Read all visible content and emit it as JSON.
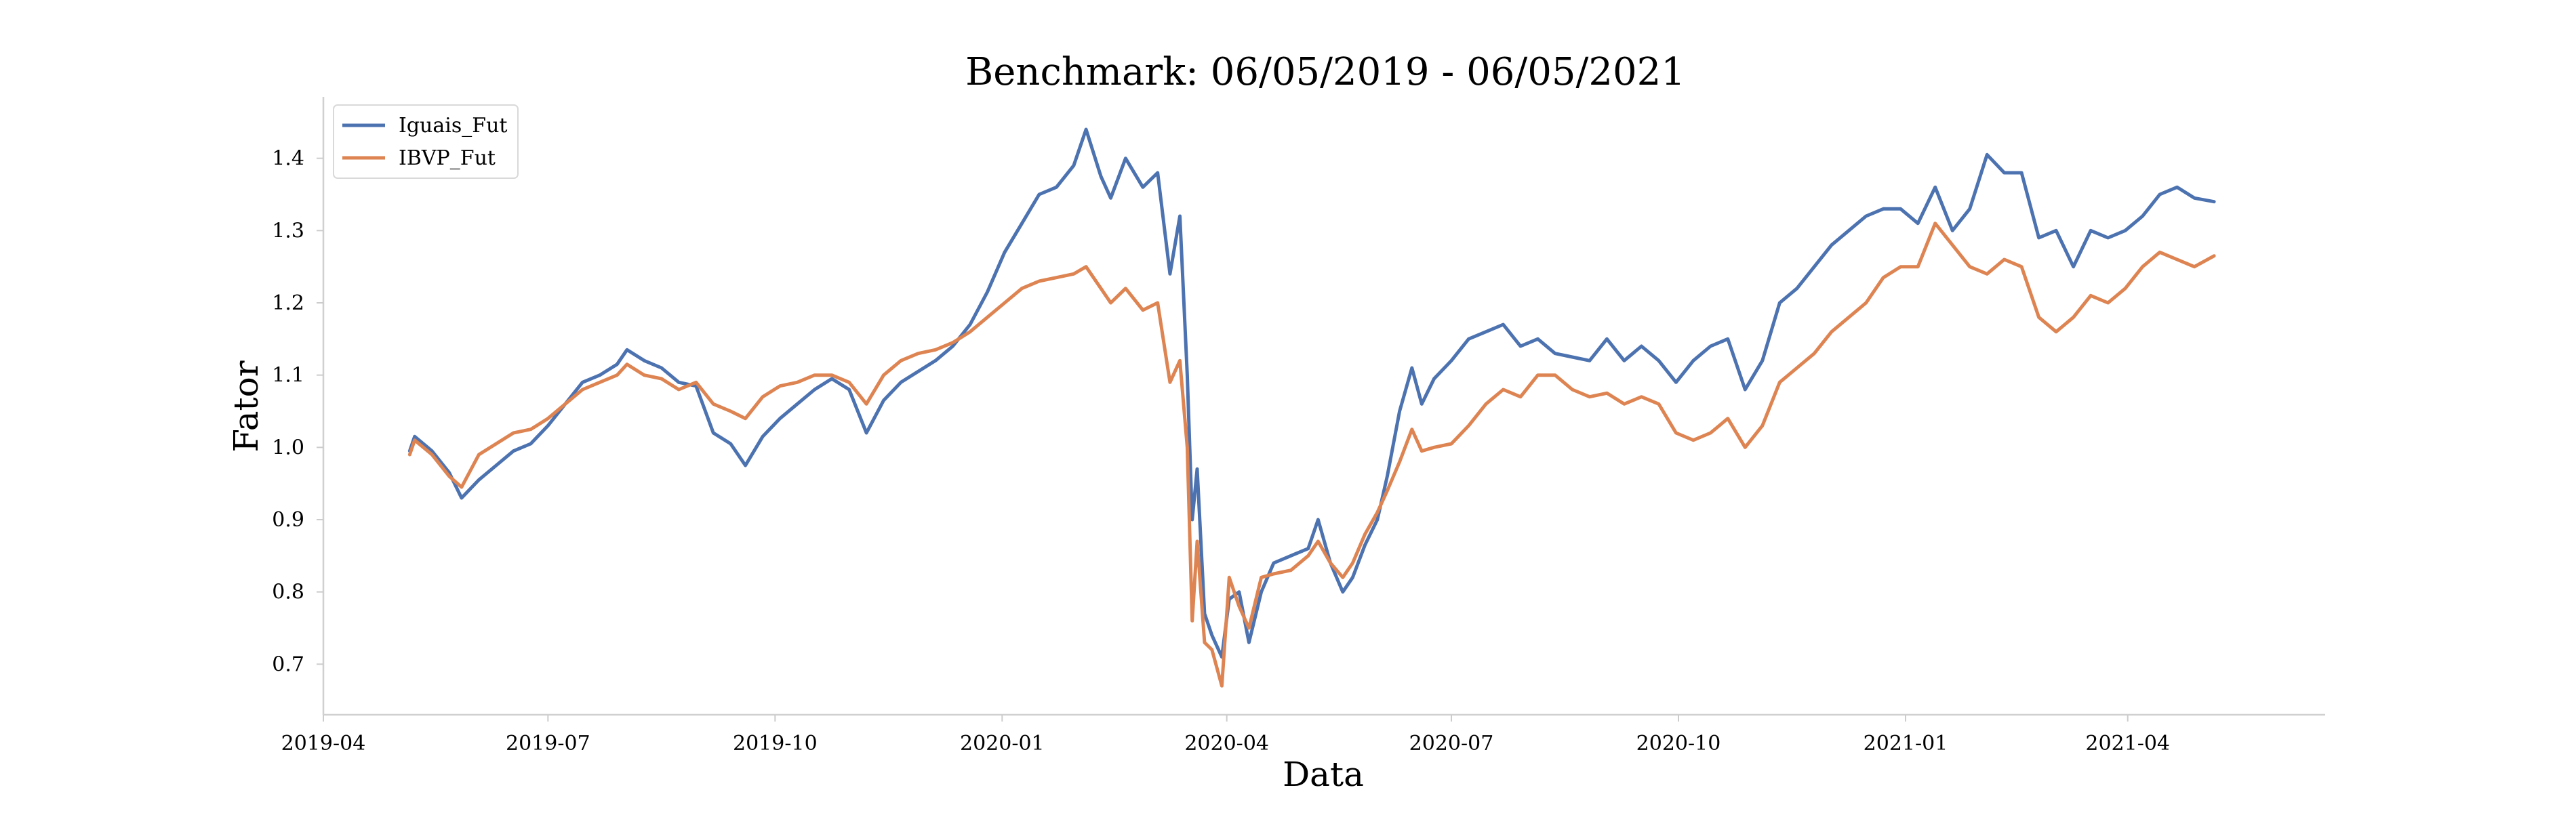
{
  "chart_data": {
    "type": "line",
    "title": "Benchmark: 06/05/2019 - 06/05/2021",
    "xlabel": "Data",
    "ylabel": "Fator",
    "xlim": [
      "2019-04-01",
      "2021-06-20"
    ],
    "ylim": [
      0.63,
      1.485
    ],
    "x_ticks": [
      "2019-04",
      "2019-07",
      "2019-10",
      "2020-01",
      "2020-04",
      "2020-07",
      "2020-10",
      "2021-01",
      "2021-04"
    ],
    "y_ticks": [
      "0.7",
      "0.8",
      "0.9",
      "1.0",
      "1.1",
      "1.2",
      "1.3",
      "1.4"
    ],
    "grid": false,
    "legend_position": "top-left",
    "series": [
      {
        "name": "Iguais_Fut",
        "color": "#4c72b0",
        "points": [
          [
            "2019-05-06",
            0.995
          ],
          [
            "2019-05-08",
            1.015
          ],
          [
            "2019-05-15",
            0.995
          ],
          [
            "2019-05-22",
            0.965
          ],
          [
            "2019-05-27",
            0.93
          ],
          [
            "2019-06-03",
            0.955
          ],
          [
            "2019-06-10",
            0.975
          ],
          [
            "2019-06-17",
            0.995
          ],
          [
            "2019-06-24",
            1.005
          ],
          [
            "2019-07-01",
            1.03
          ],
          [
            "2019-07-08",
            1.06
          ],
          [
            "2019-07-15",
            1.09
          ],
          [
            "2019-07-22",
            1.1
          ],
          [
            "2019-07-29",
            1.115
          ],
          [
            "2019-08-02",
            1.135
          ],
          [
            "2019-08-09",
            1.12
          ],
          [
            "2019-08-16",
            1.11
          ],
          [
            "2019-08-23",
            1.09
          ],
          [
            "2019-08-30",
            1.085
          ],
          [
            "2019-09-06",
            1.02
          ],
          [
            "2019-09-13",
            1.005
          ],
          [
            "2019-09-19",
            0.975
          ],
          [
            "2019-09-26",
            1.015
          ],
          [
            "2019-10-03",
            1.04
          ],
          [
            "2019-10-10",
            1.06
          ],
          [
            "2019-10-17",
            1.08
          ],
          [
            "2019-10-24",
            1.095
          ],
          [
            "2019-10-31",
            1.08
          ],
          [
            "2019-11-07",
            1.02
          ],
          [
            "2019-11-14",
            1.065
          ],
          [
            "2019-11-21",
            1.09
          ],
          [
            "2019-11-28",
            1.105
          ],
          [
            "2019-12-05",
            1.12
          ],
          [
            "2019-12-12",
            1.14
          ],
          [
            "2019-12-19",
            1.17
          ],
          [
            "2019-12-26",
            1.215
          ],
          [
            "2020-01-02",
            1.27
          ],
          [
            "2020-01-09",
            1.31
          ],
          [
            "2020-01-16",
            1.35
          ],
          [
            "2020-01-23",
            1.36
          ],
          [
            "2020-01-30",
            1.39
          ],
          [
            "2020-02-04",
            1.44
          ],
          [
            "2020-02-10",
            1.375
          ],
          [
            "2020-02-14",
            1.345
          ],
          [
            "2020-02-20",
            1.4
          ],
          [
            "2020-02-27",
            1.36
          ],
          [
            "2020-03-04",
            1.38
          ],
          [
            "2020-03-09",
            1.24
          ],
          [
            "2020-03-13",
            1.32
          ],
          [
            "2020-03-16",
            1.1
          ],
          [
            "2020-03-18",
            0.9
          ],
          [
            "2020-03-20",
            0.97
          ],
          [
            "2020-03-23",
            0.77
          ],
          [
            "2020-03-26",
            0.74
          ],
          [
            "2020-03-30",
            0.71
          ],
          [
            "2020-04-02",
            0.79
          ],
          [
            "2020-04-06",
            0.8
          ],
          [
            "2020-04-10",
            0.73
          ],
          [
            "2020-04-15",
            0.8
          ],
          [
            "2020-04-20",
            0.84
          ],
          [
            "2020-04-27",
            0.85
          ],
          [
            "2020-05-04",
            0.86
          ],
          [
            "2020-05-08",
            0.9
          ],
          [
            "2020-05-13",
            0.84
          ],
          [
            "2020-05-18",
            0.8
          ],
          [
            "2020-05-22",
            0.82
          ],
          [
            "2020-05-27",
            0.865
          ],
          [
            "2020-06-01",
            0.9
          ],
          [
            "2020-06-05",
            0.96
          ],
          [
            "2020-06-10",
            1.05
          ],
          [
            "2020-06-15",
            1.11
          ],
          [
            "2020-06-19",
            1.06
          ],
          [
            "2020-06-24",
            1.095
          ],
          [
            "2020-07-01",
            1.12
          ],
          [
            "2020-07-08",
            1.15
          ],
          [
            "2020-07-15",
            1.16
          ],
          [
            "2020-07-22",
            1.17
          ],
          [
            "2020-07-29",
            1.14
          ],
          [
            "2020-08-05",
            1.15
          ],
          [
            "2020-08-12",
            1.13
          ],
          [
            "2020-08-19",
            1.125
          ],
          [
            "2020-08-26",
            1.12
          ],
          [
            "2020-09-02",
            1.15
          ],
          [
            "2020-09-09",
            1.12
          ],
          [
            "2020-09-16",
            1.14
          ],
          [
            "2020-09-23",
            1.12
          ],
          [
            "2020-09-30",
            1.09
          ],
          [
            "2020-10-07",
            1.12
          ],
          [
            "2020-10-14",
            1.14
          ],
          [
            "2020-10-21",
            1.15
          ],
          [
            "2020-10-28",
            1.08
          ],
          [
            "2020-11-04",
            1.12
          ],
          [
            "2020-11-11",
            1.2
          ],
          [
            "2020-11-18",
            1.22
          ],
          [
            "2020-11-25",
            1.25
          ],
          [
            "2020-12-02",
            1.28
          ],
          [
            "2020-12-09",
            1.3
          ],
          [
            "2020-12-16",
            1.32
          ],
          [
            "2020-12-23",
            1.33
          ],
          [
            "2020-12-30",
            1.33
          ],
          [
            "2021-01-06",
            1.31
          ],
          [
            "2021-01-13",
            1.36
          ],
          [
            "2021-01-20",
            1.3
          ],
          [
            "2021-01-27",
            1.33
          ],
          [
            "2021-02-03",
            1.405
          ],
          [
            "2021-02-10",
            1.38
          ],
          [
            "2021-02-17",
            1.38
          ],
          [
            "2021-02-24",
            1.29
          ],
          [
            "2021-03-03",
            1.3
          ],
          [
            "2021-03-10",
            1.25
          ],
          [
            "2021-03-17",
            1.3
          ],
          [
            "2021-03-24",
            1.29
          ],
          [
            "2021-03-31",
            1.3
          ],
          [
            "2021-04-07",
            1.32
          ],
          [
            "2021-04-14",
            1.35
          ],
          [
            "2021-04-21",
            1.36
          ],
          [
            "2021-04-28",
            1.345
          ],
          [
            "2021-05-06",
            1.34
          ]
        ]
      },
      {
        "name": "IBVP_Fut",
        "color": "#dd8452",
        "points": [
          [
            "2019-05-06",
            0.99
          ],
          [
            "2019-05-08",
            1.01
          ],
          [
            "2019-05-15",
            0.99
          ],
          [
            "2019-05-22",
            0.96
          ],
          [
            "2019-05-27",
            0.945
          ],
          [
            "2019-06-03",
            0.99
          ],
          [
            "2019-06-10",
            1.005
          ],
          [
            "2019-06-17",
            1.02
          ],
          [
            "2019-06-24",
            1.025
          ],
          [
            "2019-07-01",
            1.04
          ],
          [
            "2019-07-08",
            1.06
          ],
          [
            "2019-07-15",
            1.08
          ],
          [
            "2019-07-22",
            1.09
          ],
          [
            "2019-07-29",
            1.1
          ],
          [
            "2019-08-02",
            1.115
          ],
          [
            "2019-08-09",
            1.1
          ],
          [
            "2019-08-16",
            1.095
          ],
          [
            "2019-08-23",
            1.08
          ],
          [
            "2019-08-30",
            1.09
          ],
          [
            "2019-09-06",
            1.06
          ],
          [
            "2019-09-13",
            1.05
          ],
          [
            "2019-09-19",
            1.04
          ],
          [
            "2019-09-26",
            1.07
          ],
          [
            "2019-10-03",
            1.085
          ],
          [
            "2019-10-10",
            1.09
          ],
          [
            "2019-10-17",
            1.1
          ],
          [
            "2019-10-24",
            1.1
          ],
          [
            "2019-10-31",
            1.09
          ],
          [
            "2019-11-07",
            1.06
          ],
          [
            "2019-11-14",
            1.1
          ],
          [
            "2019-11-21",
            1.12
          ],
          [
            "2019-11-28",
            1.13
          ],
          [
            "2019-12-05",
            1.135
          ],
          [
            "2019-12-12",
            1.145
          ],
          [
            "2019-12-19",
            1.16
          ],
          [
            "2019-12-26",
            1.18
          ],
          [
            "2020-01-02",
            1.2
          ],
          [
            "2020-01-09",
            1.22
          ],
          [
            "2020-01-16",
            1.23
          ],
          [
            "2020-01-23",
            1.235
          ],
          [
            "2020-01-30",
            1.24
          ],
          [
            "2020-02-04",
            1.25
          ],
          [
            "2020-02-10",
            1.22
          ],
          [
            "2020-02-14",
            1.2
          ],
          [
            "2020-02-20",
            1.22
          ],
          [
            "2020-02-27",
            1.19
          ],
          [
            "2020-03-04",
            1.2
          ],
          [
            "2020-03-09",
            1.09
          ],
          [
            "2020-03-13",
            1.12
          ],
          [
            "2020-03-16",
            1.0
          ],
          [
            "2020-03-18",
            0.76
          ],
          [
            "2020-03-20",
            0.87
          ],
          [
            "2020-03-23",
            0.73
          ],
          [
            "2020-03-26",
            0.72
          ],
          [
            "2020-03-30",
            0.67
          ],
          [
            "2020-04-02",
            0.82
          ],
          [
            "2020-04-06",
            0.78
          ],
          [
            "2020-04-10",
            0.75
          ],
          [
            "2020-04-15",
            0.82
          ],
          [
            "2020-04-20",
            0.825
          ],
          [
            "2020-04-27",
            0.83
          ],
          [
            "2020-05-04",
            0.85
          ],
          [
            "2020-05-08",
            0.87
          ],
          [
            "2020-05-13",
            0.84
          ],
          [
            "2020-05-18",
            0.82
          ],
          [
            "2020-05-22",
            0.84
          ],
          [
            "2020-05-27",
            0.88
          ],
          [
            "2020-06-01",
            0.91
          ],
          [
            "2020-06-05",
            0.94
          ],
          [
            "2020-06-10",
            0.98
          ],
          [
            "2020-06-15",
            1.025
          ],
          [
            "2020-06-19",
            0.995
          ],
          [
            "2020-06-24",
            1.0
          ],
          [
            "2020-07-01",
            1.005
          ],
          [
            "2020-07-08",
            1.03
          ],
          [
            "2020-07-15",
            1.06
          ],
          [
            "2020-07-22",
            1.08
          ],
          [
            "2020-07-29",
            1.07
          ],
          [
            "2020-08-05",
            1.1
          ],
          [
            "2020-08-12",
            1.1
          ],
          [
            "2020-08-19",
            1.08
          ],
          [
            "2020-08-26",
            1.07
          ],
          [
            "2020-09-02",
            1.075
          ],
          [
            "2020-09-09",
            1.06
          ],
          [
            "2020-09-16",
            1.07
          ],
          [
            "2020-09-23",
            1.06
          ],
          [
            "2020-09-30",
            1.02
          ],
          [
            "2020-10-07",
            1.01
          ],
          [
            "2020-10-14",
            1.02
          ],
          [
            "2020-10-21",
            1.04
          ],
          [
            "2020-10-28",
            1.0
          ],
          [
            "2020-11-04",
            1.03
          ],
          [
            "2020-11-11",
            1.09
          ],
          [
            "2020-11-18",
            1.11
          ],
          [
            "2020-11-25",
            1.13
          ],
          [
            "2020-12-02",
            1.16
          ],
          [
            "2020-12-09",
            1.18
          ],
          [
            "2020-12-16",
            1.2
          ],
          [
            "2020-12-23",
            1.235
          ],
          [
            "2020-12-30",
            1.25
          ],
          [
            "2021-01-06",
            1.25
          ],
          [
            "2021-01-13",
            1.31
          ],
          [
            "2021-01-20",
            1.28
          ],
          [
            "2021-01-27",
            1.25
          ],
          [
            "2021-02-03",
            1.24
          ],
          [
            "2021-02-10",
            1.26
          ],
          [
            "2021-02-17",
            1.25
          ],
          [
            "2021-02-24",
            1.18
          ],
          [
            "2021-03-03",
            1.16
          ],
          [
            "2021-03-10",
            1.18
          ],
          [
            "2021-03-17",
            1.21
          ],
          [
            "2021-03-24",
            1.2
          ],
          [
            "2021-03-31",
            1.22
          ],
          [
            "2021-04-07",
            1.25
          ],
          [
            "2021-04-14",
            1.27
          ],
          [
            "2021-04-21",
            1.26
          ],
          [
            "2021-04-28",
            1.25
          ],
          [
            "2021-05-06",
            1.265
          ]
        ]
      }
    ]
  }
}
